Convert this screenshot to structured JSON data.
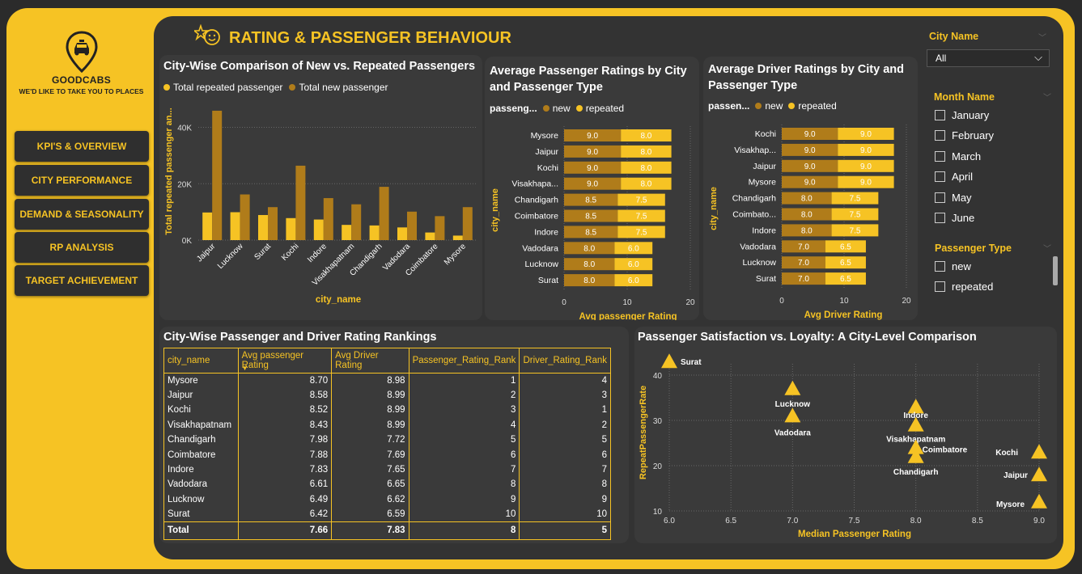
{
  "brand": {
    "name": "GOODCABS",
    "tagline": "WE'D LIKE TO TAKE YOU TO PLACES"
  },
  "nav": [
    "KPI'S & OVERVIEW",
    "CITY PERFORMANCE",
    "DEMAND & SEASONALITY",
    "RP ANALYSIS",
    "TARGET ACHIEVEMENT"
  ],
  "page_title": "RATING & PASSENGER BEHAVIOUR",
  "colors": {
    "yellow": "#f6c324",
    "brown": "#b07c1a",
    "panel": "#3a3a3a"
  },
  "slicers": {
    "city": {
      "label": "City Name",
      "value": "All"
    },
    "month": {
      "label": "Month Name",
      "options": [
        "January",
        "February",
        "March",
        "April",
        "May",
        "June"
      ]
    },
    "passenger_type": {
      "label": "Passenger Type",
      "options": [
        "new",
        "repeated"
      ]
    }
  },
  "charts": {
    "city_compare": {
      "title": "City-Wise Comparison of New vs. Repeated Passengers",
      "legend": [
        "Total repeated passenger",
        "Total new passenger"
      ],
      "xlabel": "city_name",
      "ylabel": "Total repeated passenger an...",
      "yticks": [
        "0K",
        "20K",
        "40K"
      ]
    },
    "avg_passenger": {
      "title": "Average Passenger Ratings by City and Passenger Type",
      "legend_title": "passeng...",
      "legend": [
        "new",
        "repeated"
      ],
      "ylabel": "city_name",
      "xlabel": "Avg passenger Rating",
      "xticks": [
        "0",
        "10",
        "20"
      ]
    },
    "avg_driver": {
      "title": "Average Driver Ratings by City and Passenger Type",
      "legend_title": "passen...",
      "legend": [
        "new",
        "repeated"
      ],
      "ylabel": "city_name",
      "xlabel": "Avg Driver Rating",
      "xticks": [
        "0",
        "10",
        "20"
      ]
    },
    "rankings": {
      "title": "City-Wise Passenger and Driver Rating Rankings",
      "columns": [
        "city_name",
        "Avg passenger Rating",
        "Avg Driver Rating",
        "Passenger_Rating_Rank",
        "Driver_Rating_Rank"
      ],
      "rows": [
        [
          "Mysore",
          "8.70",
          "8.98",
          "1",
          "4"
        ],
        [
          "Jaipur",
          "8.58",
          "8.99",
          "2",
          "3"
        ],
        [
          "Kochi",
          "8.52",
          "8.99",
          "3",
          "1"
        ],
        [
          "Visakhapatnam",
          "8.43",
          "8.99",
          "4",
          "2"
        ],
        [
          "Chandigarh",
          "7.98",
          "7.72",
          "5",
          "5"
        ],
        [
          "Coimbatore",
          "7.88",
          "7.69",
          "6",
          "6"
        ],
        [
          "Indore",
          "7.83",
          "7.65",
          "7",
          "7"
        ],
        [
          "Vadodara",
          "6.61",
          "6.65",
          "8",
          "8"
        ],
        [
          "Lucknow",
          "6.49",
          "6.62",
          "9",
          "9"
        ],
        [
          "Surat",
          "6.42",
          "6.59",
          "10",
          "10"
        ]
      ],
      "total": [
        "Total",
        "7.66",
        "7.83",
        "8",
        "5"
      ]
    },
    "satisfaction": {
      "title": "Passenger Satisfaction vs. Loyalty: A City-Level Comparison",
      "xlabel": "Median Passenger Rating",
      "ylabel": "RepeatPassengerRate",
      "xticks": [
        "6.0",
        "6.5",
        "7.0",
        "7.5",
        "8.0",
        "8.5",
        "9.0"
      ],
      "yticks": [
        "10",
        "20",
        "30",
        "40"
      ]
    }
  },
  "chart_data": [
    {
      "type": "bar",
      "categories": [
        "Jaipur",
        "Lucknow",
        "Surat",
        "Kochi",
        "Indore",
        "Visakhapatnam",
        "Chandigarh",
        "Vadodara",
        "Coimbatore",
        "Mysore"
      ],
      "series": [
        {
          "name": "Total repeated passenger",
          "values": [
            9800,
            9900,
            8900,
            7800,
            7300,
            5400,
            5200,
            4500,
            2700,
            1600
          ]
        },
        {
          "name": "Total new passenger",
          "values": [
            45900,
            16200,
            11700,
            26400,
            14900,
            12700,
            18900,
            10100,
            8500,
            11700
          ]
        }
      ],
      "ylim": [
        0,
        50000
      ]
    },
    {
      "type": "bar",
      "orientation": "horizontal",
      "stacked": true,
      "categories": [
        "Mysore",
        "Jaipur",
        "Kochi",
        "Visakhapa...",
        "Chandigarh",
        "Coimbatore",
        "Indore",
        "Vadodara",
        "Lucknow",
        "Surat"
      ],
      "series": [
        {
          "name": "new",
          "values": [
            9.0,
            9.0,
            9.0,
            9.0,
            8.5,
            8.5,
            8.5,
            8.0,
            8.0,
            8.0
          ]
        },
        {
          "name": "repeated",
          "values": [
            8.0,
            8.0,
            8.0,
            8.0,
            7.5,
            7.5,
            7.5,
            6.0,
            6.0,
            6.0
          ]
        }
      ],
      "xlim": [
        0,
        20
      ]
    },
    {
      "type": "bar",
      "orientation": "horizontal",
      "stacked": true,
      "categories": [
        "Kochi",
        "Visakhap...",
        "Jaipur",
        "Mysore",
        "Chandigarh",
        "Coimbato...",
        "Indore",
        "Vadodara",
        "Lucknow",
        "Surat"
      ],
      "series": [
        {
          "name": "new",
          "values": [
            9.0,
            9.0,
            9.0,
            9.0,
            8.0,
            8.0,
            8.0,
            7.0,
            7.0,
            7.0
          ]
        },
        {
          "name": "repeated",
          "values": [
            9.0,
            9.0,
            9.0,
            9.0,
            7.5,
            7.5,
            7.5,
            6.5,
            6.5,
            6.5
          ]
        }
      ],
      "xlim": [
        0,
        20
      ]
    },
    {
      "type": "scatter",
      "points": [
        {
          "label": "Surat",
          "x": 6.0,
          "y": 43
        },
        {
          "label": "Lucknow",
          "x": 7.0,
          "y": 37
        },
        {
          "label": "Vadodara",
          "x": 7.0,
          "y": 31
        },
        {
          "label": "Indore",
          "x": 8.0,
          "y": 33
        },
        {
          "label": "Visakhapatnam",
          "x": 8.0,
          "y": 29
        },
        {
          "label": "Coimbatore",
          "x": 8.0,
          "y": 24
        },
        {
          "label": "Chandigarh",
          "x": 8.0,
          "y": 22
        },
        {
          "label": "Kochi",
          "x": 9.0,
          "y": 23
        },
        {
          "label": "Jaipur",
          "x": 9.0,
          "y": 18
        },
        {
          "label": "Mysore",
          "x": 9.0,
          "y": 12
        }
      ],
      "xlim": [
        6.0,
        9.0
      ],
      "ylim": [
        10,
        43
      ]
    }
  ]
}
